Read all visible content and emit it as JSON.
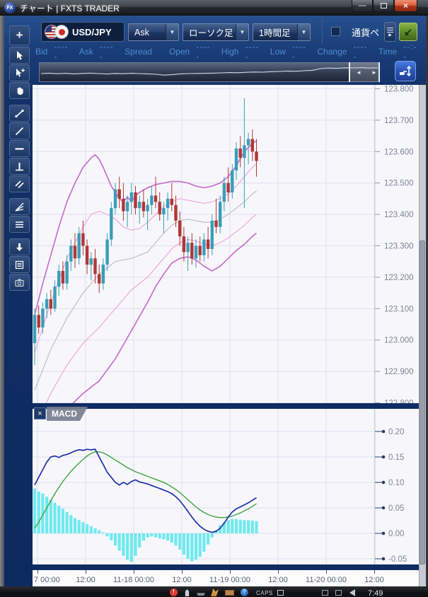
{
  "window": {
    "title": "チャート | FXTS TRADER",
    "logo": "FX"
  },
  "icons": {
    "minimize": "—",
    "maximize": "",
    "close": "×",
    "combo_arrow": "▼",
    "left_arrow": "◄",
    "right_arrow": "►",
    "dock_arrow": "↙",
    "list_arrow": "▶",
    "macd_close": "×",
    "alert": "!",
    "help": "?"
  },
  "toolbar": {
    "instrument": "USD/JPY",
    "price_type": "Ask",
    "chart_type": "ローソク足",
    "timeframe": "1時間足",
    "currency_pair_label": "通貨ペ"
  },
  "quote_bar": {
    "fields": [
      {
        "label": "Bid",
        "value": "-----"
      },
      {
        "label": "Ask",
        "value": "-----"
      },
      {
        "label": "Spread",
        "value": ""
      },
      {
        "label": "Open",
        "value": "-----"
      },
      {
        "label": "High",
        "value": "-----"
      },
      {
        "label": "Low",
        "value": "-----"
      },
      {
        "label": "Change",
        "value": "-----"
      },
      {
        "label": "Time",
        "value": "--:--"
      }
    ]
  },
  "taskbar": {
    "caps": "CAPS",
    "clock": "7:49"
  },
  "chart_data": {
    "type": "candlestick",
    "symbol": "USD/JPY",
    "timeframe": "1時間足",
    "overlay": "Bollinger Bands (±1σ, ±2σ)",
    "grid": true,
    "y_axis": {
      "min": 122.8,
      "max": 123.8,
      "tick": 0.1,
      "labels": [
        "123.800",
        "123.700",
        "123.600",
        "123.500",
        "123.400",
        "123.300",
        "123.200",
        "123.100",
        "123.000",
        "122.900",
        "122.800"
      ]
    },
    "x_labels": [
      "7 00:00",
      "12:00",
      "11-18 00:00",
      "12:00",
      "11-19 00:00",
      "12:00",
      "11-20 00:00",
      "12:00"
    ],
    "colors": {
      "grid": "#dddff0",
      "bg": "#f7f7fb",
      "up": "#3a9db8",
      "down": "#b23737",
      "band_outer": "#c96fd0",
      "band_inner": "#f0ace0",
      "band_mid": "#c2c1cb",
      "hist": "#6fe9ef",
      "macd": "#1f2fa8",
      "signal": "#3da53d"
    },
    "candles": [
      [
        122.99,
        123.1,
        122.92,
        123.08
      ],
      [
        123.08,
        123.11,
        123.02,
        123.04
      ],
      [
        123.04,
        123.12,
        123.02,
        123.1
      ],
      [
        123.1,
        123.15,
        123.07,
        123.13
      ],
      [
        123.13,
        123.16,
        123.08,
        123.1
      ],
      [
        123.1,
        123.19,
        123.09,
        123.17
      ],
      [
        123.17,
        123.24,
        123.14,
        123.22
      ],
      [
        123.22,
        123.25,
        123.16,
        123.18
      ],
      [
        123.18,
        123.27,
        123.16,
        123.25
      ],
      [
        123.25,
        123.32,
        123.22,
        123.3
      ],
      [
        123.3,
        123.34,
        123.23,
        123.26
      ],
      [
        123.26,
        123.36,
        123.24,
        123.34
      ],
      [
        123.34,
        123.38,
        123.27,
        123.3
      ],
      [
        123.3,
        123.32,
        123.21,
        123.24
      ],
      [
        123.24,
        123.28,
        123.19,
        123.26
      ],
      [
        123.26,
        123.29,
        123.18,
        123.21
      ],
      [
        123.21,
        123.24,
        123.15,
        123.18
      ],
      [
        123.18,
        123.26,
        123.16,
        123.24
      ],
      [
        123.24,
        123.34,
        123.22,
        123.32
      ],
      [
        123.32,
        123.44,
        123.3,
        123.42
      ],
      [
        123.42,
        123.5,
        123.4,
        123.48
      ],
      [
        123.48,
        123.52,
        123.42,
        123.45
      ],
      [
        123.45,
        123.5,
        123.38,
        123.41
      ],
      [
        123.41,
        123.46,
        123.36,
        123.44
      ],
      [
        123.44,
        123.5,
        123.4,
        123.47
      ],
      [
        123.47,
        123.49,
        123.4,
        123.42
      ],
      [
        123.42,
        123.46,
        123.37,
        123.44
      ],
      [
        123.44,
        123.48,
        123.39,
        123.41
      ],
      [
        123.41,
        123.45,
        123.35,
        123.43
      ],
      [
        123.43,
        123.49,
        123.4,
        123.46
      ],
      [
        123.46,
        123.52,
        123.42,
        123.44
      ],
      [
        123.44,
        123.47,
        123.38,
        123.4
      ],
      [
        123.4,
        123.44,
        123.34,
        123.42
      ],
      [
        123.42,
        123.47,
        123.38,
        123.45
      ],
      [
        123.45,
        123.5,
        123.41,
        123.43
      ],
      [
        123.43,
        123.46,
        123.36,
        123.38
      ],
      [
        123.38,
        123.41,
        123.3,
        123.33
      ],
      [
        123.33,
        123.36,
        123.25,
        123.28
      ],
      [
        123.28,
        123.33,
        123.22,
        123.31
      ],
      [
        123.31,
        123.34,
        123.24,
        123.26
      ],
      [
        123.26,
        123.32,
        123.23,
        123.3
      ],
      [
        123.3,
        123.33,
        123.25,
        123.27
      ],
      [
        123.27,
        123.34,
        123.25,
        123.32
      ],
      [
        123.32,
        123.36,
        123.26,
        123.29
      ],
      [
        123.29,
        123.4,
        123.27,
        123.38
      ],
      [
        123.38,
        123.45,
        123.34,
        123.36
      ],
      [
        123.36,
        123.46,
        123.34,
        123.44
      ],
      [
        123.44,
        123.52,
        123.41,
        123.5
      ],
      [
        123.5,
        123.55,
        123.44,
        123.47
      ],
      [
        123.47,
        123.56,
        123.45,
        123.54
      ],
      [
        123.54,
        123.63,
        123.51,
        123.61
      ],
      [
        123.61,
        123.65,
        123.55,
        123.58
      ],
      [
        123.58,
        123.77,
        123.42,
        123.62
      ],
      [
        123.62,
        123.66,
        123.56,
        123.64
      ],
      [
        123.64,
        123.67,
        123.57,
        123.6
      ],
      [
        123.6,
        123.64,
        123.52,
        123.57
      ]
    ],
    "bands": {
      "upper2": [
        [
          0,
          123.08
        ],
        [
          2,
          123.18
        ],
        [
          4,
          123.27
        ],
        [
          6,
          123.36
        ],
        [
          8,
          123.44
        ],
        [
          10,
          123.5
        ],
        [
          12,
          123.55
        ],
        [
          14,
          123.58
        ],
        [
          15,
          123.59
        ],
        [
          16,
          123.575
        ],
        [
          17,
          123.55
        ],
        [
          18,
          123.52
        ],
        [
          19,
          123.49
        ],
        [
          20,
          123.47
        ],
        [
          21,
          123.45
        ],
        [
          22,
          123.44
        ],
        [
          23,
          123.455
        ],
        [
          24,
          123.44
        ],
        [
          25,
          123.46
        ],
        [
          26,
          123.47
        ],
        [
          28,
          123.485
        ],
        [
          30,
          123.495
        ],
        [
          32,
          123.5
        ],
        [
          34,
          123.505
        ],
        [
          36,
          123.505
        ],
        [
          38,
          123.5
        ],
        [
          40,
          123.49
        ],
        [
          42,
          123.485
        ],
        [
          44,
          123.49
        ],
        [
          46,
          123.5
        ],
        [
          48,
          123.52
        ],
        [
          50,
          123.555
        ],
        [
          52,
          123.6
        ],
        [
          54,
          123.625
        ],
        [
          55,
          123.635
        ]
      ],
      "upper1": [
        [
          0,
          122.96
        ],
        [
          4,
          123.12
        ],
        [
          8,
          123.26
        ],
        [
          12,
          123.36
        ],
        [
          14,
          123.4
        ],
        [
          16,
          123.41
        ],
        [
          18,
          123.4
        ],
        [
          20,
          123.385
        ],
        [
          22,
          123.36
        ],
        [
          24,
          123.35
        ],
        [
          26,
          123.355
        ],
        [
          28,
          123.375
        ],
        [
          30,
          123.4
        ],
        [
          32,
          123.425
        ],
        [
          34,
          123.44
        ],
        [
          36,
          123.45
        ],
        [
          38,
          123.445
        ],
        [
          40,
          123.44
        ],
        [
          42,
          123.435
        ],
        [
          44,
          123.44
        ],
        [
          46,
          123.45
        ],
        [
          48,
          123.465
        ],
        [
          50,
          123.49
        ],
        [
          52,
          123.52
        ],
        [
          54,
          123.55
        ],
        [
          55,
          123.56
        ]
      ],
      "mid": [
        [
          0,
          122.84
        ],
        [
          4,
          122.97
        ],
        [
          8,
          123.07
        ],
        [
          12,
          123.15
        ],
        [
          16,
          123.21
        ],
        [
          20,
          123.25
        ],
        [
          24,
          123.26
        ],
        [
          28,
          123.28
        ],
        [
          30,
          123.31
        ],
        [
          32,
          123.34
        ],
        [
          34,
          123.365
        ],
        [
          36,
          123.38
        ],
        [
          38,
          123.385
        ],
        [
          40,
          123.38
        ],
        [
          42,
          123.375
        ],
        [
          44,
          123.375
        ],
        [
          46,
          123.385
        ],
        [
          48,
          123.4
        ],
        [
          50,
          123.42
        ],
        [
          52,
          123.44
        ],
        [
          54,
          123.465
        ],
        [
          55,
          123.475
        ]
      ],
      "lower1": [
        [
          0,
          122.72
        ],
        [
          4,
          122.83
        ],
        [
          8,
          122.92
        ],
        [
          12,
          122.99
        ],
        [
          16,
          123.04
        ],
        [
          20,
          123.1
        ],
        [
          24,
          123.16
        ],
        [
          28,
          123.2
        ],
        [
          30,
          123.23
        ],
        [
          32,
          123.26
        ],
        [
          34,
          123.29
        ],
        [
          36,
          123.31
        ],
        [
          38,
          123.32
        ],
        [
          40,
          123.315
        ],
        [
          42,
          123.305
        ],
        [
          44,
          123.3
        ],
        [
          46,
          123.31
        ],
        [
          48,
          123.325
        ],
        [
          50,
          123.345
        ],
        [
          52,
          123.365
        ],
        [
          54,
          123.39
        ],
        [
          55,
          123.4
        ]
      ],
      "lower2": [
        [
          0,
          122.6
        ],
        [
          4,
          122.7
        ],
        [
          8,
          122.78
        ],
        [
          12,
          122.83
        ],
        [
          16,
          122.87
        ],
        [
          20,
          122.94
        ],
        [
          24,
          123.03
        ],
        [
          28,
          123.12
        ],
        [
          30,
          123.17
        ],
        [
          32,
          123.21
        ],
        [
          34,
          123.245
        ],
        [
          36,
          123.26
        ],
        [
          38,
          123.265
        ],
        [
          40,
          123.255
        ],
        [
          42,
          123.235
        ],
        [
          44,
          123.22
        ],
        [
          46,
          123.235
        ],
        [
          48,
          123.26
        ],
        [
          50,
          123.285
        ],
        [
          52,
          123.305
        ],
        [
          54,
          123.33
        ],
        [
          55,
          123.34
        ]
      ]
    },
    "macd": {
      "label": "MACD",
      "y_axis": {
        "min": -0.05,
        "max": 0.2,
        "tick": 0.05,
        "labels": [
          "0.20",
          "0.15",
          "0.10",
          "0.05",
          "0.00",
          "-0.05"
        ]
      },
      "histogram": [
        0.088,
        0.082,
        0.078,
        0.072,
        0.066,
        0.06,
        0.054,
        0.048,
        0.042,
        0.036,
        0.03,
        0.026,
        0.022,
        0.018,
        0.014,
        0.01,
        0.006,
        0.002,
        -0.006,
        -0.014,
        -0.024,
        -0.034,
        -0.044,
        -0.052,
        -0.056,
        -0.044,
        -0.028,
        -0.014,
        -0.008,
        -0.006,
        -0.008,
        -0.01,
        -0.012,
        -0.014,
        -0.018,
        -0.024,
        -0.032,
        -0.042,
        -0.05,
        -0.055,
        -0.052,
        -0.046,
        -0.036,
        -0.022,
        -0.008,
        0.006,
        0.016,
        0.022,
        0.026,
        0.028,
        0.028,
        0.027,
        0.026,
        0.026,
        0.025,
        0.024
      ],
      "macd_line": [
        0.095,
        0.11,
        0.125,
        0.14,
        0.15,
        0.152,
        0.149,
        0.153,
        0.155,
        0.158,
        0.162,
        0.164,
        0.163,
        0.165,
        0.164,
        0.165,
        0.15,
        0.135,
        0.12,
        0.11,
        0.1,
        0.095,
        0.1,
        0.096,
        0.102,
        0.105,
        0.101,
        0.099,
        0.097,
        0.094,
        0.091,
        0.088,
        0.085,
        0.082,
        0.078,
        0.072,
        0.064,
        0.054,
        0.043,
        0.032,
        0.022,
        0.014,
        0.008,
        0.004,
        0.002,
        0.004,
        0.01,
        0.02,
        0.032,
        0.042,
        0.048,
        0.052,
        0.056,
        0.06,
        0.065,
        0.07
      ],
      "signal_line": [
        0.01,
        0.022,
        0.036,
        0.05,
        0.064,
        0.078,
        0.09,
        0.102,
        0.112,
        0.122,
        0.13,
        0.138,
        0.145,
        0.152,
        0.157,
        0.16,
        0.16,
        0.158,
        0.154,
        0.149,
        0.144,
        0.139,
        0.134,
        0.129,
        0.125,
        0.121,
        0.118,
        0.115,
        0.112,
        0.109,
        0.106,
        0.103,
        0.1,
        0.096,
        0.091,
        0.086,
        0.08,
        0.073,
        0.066,
        0.059,
        0.052,
        0.046,
        0.041,
        0.037,
        0.034,
        0.032,
        0.031,
        0.031,
        0.032,
        0.034,
        0.037,
        0.04,
        0.044,
        0.048,
        0.053,
        0.058
      ]
    },
    "overview_sparkline": [
      0.45,
      0.48,
      0.44,
      0.47,
      0.43,
      0.46,
      0.48,
      0.45,
      0.42,
      0.46,
      0.44,
      0.47,
      0.45,
      0.43,
      0.4,
      0.34,
      0.38,
      0.43,
      0.45,
      0.46,
      0.47,
      0.48,
      0.5,
      0.52,
      0.51,
      0.54,
      0.56,
      0.55,
      0.58,
      0.6,
      0.63,
      0.61,
      0.65,
      0.68,
      0.8,
      0.84,
      0.82,
      0.86,
      0.85,
      0.87,
      0.84,
      0.86
    ]
  }
}
